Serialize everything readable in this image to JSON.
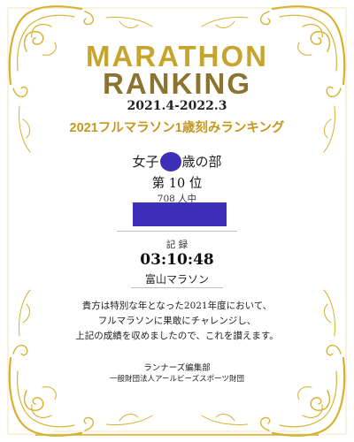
{
  "certificate": {
    "title_line1": "MARATHON",
    "title_line2": "RANKING",
    "period": "2021.4-2022.3",
    "subtitle": "2021フルマラソン1歳刻みランキング",
    "division_prefix": "女子",
    "division_suffix": "歳の部",
    "rank": "第 10 位",
    "entrants": "708 人中",
    "record_label": "記 録",
    "record_time": "03:10:48",
    "race_name": "富山マラソン",
    "message_lines": [
      "貴方は特別な年となった2021年度において、",
      "フルマラソンに果敢にチャレンジし、",
      "上記の成績を収めましたので、これを讃えます。"
    ],
    "issuer": "ランナーズ編集部",
    "organization": "一般財団法人アールビーズスポーツ財団"
  },
  "colors": {
    "gold_light": "#c7a42c",
    "gold_dark": "#8b7330",
    "subtitle_gold": "#c4981f",
    "redaction": "#3d2fb8",
    "frame": "#d6b132"
  }
}
